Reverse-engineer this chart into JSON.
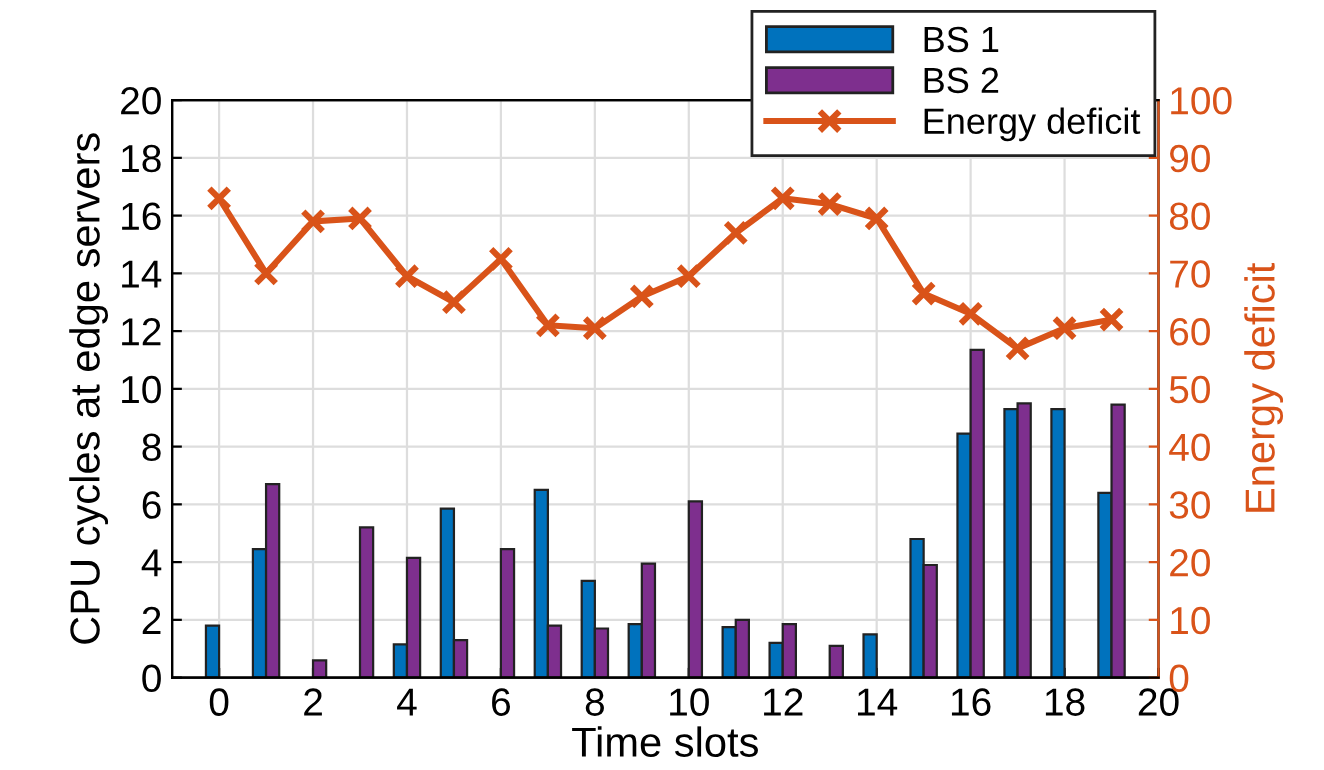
{
  "chart_data": {
    "type": "bar",
    "xlabel": "Time slots",
    "ylabel": "CPU cycles at edge servers",
    "y2label": "Energy deficit",
    "x": [
      0,
      1,
      2,
      3,
      4,
      5,
      6,
      7,
      8,
      9,
      10,
      11,
      12,
      13,
      14,
      15,
      16,
      17,
      18,
      19
    ],
    "series": [
      {
        "name": "BS 1",
        "color": "#0072bd",
        "values": [
          1.8,
          4.45,
          null,
          null,
          1.15,
          5.85,
          null,
          6.5,
          3.35,
          1.85,
          null,
          1.75,
          1.2,
          null,
          1.5,
          4.8,
          8.45,
          9.3,
          9.3,
          6.4
        ]
      },
      {
        "name": "BS 2",
        "color": "#7e2f8e",
        "values": [
          null,
          6.7,
          0.6,
          5.2,
          4.15,
          1.3,
          4.45,
          1.8,
          1.7,
          3.95,
          6.1,
          2.0,
          1.85,
          1.1,
          null,
          3.9,
          11.35,
          9.5,
          null,
          9.45
        ]
      },
      {
        "name": "Energy deficit",
        "type": "line",
        "axis": "y2",
        "color": "#d95319",
        "marker": "cross",
        "line_style": "solid",
        "values": [
          83,
          70,
          79,
          79.5,
          69.5,
          65,
          72.5,
          61,
          60.5,
          66,
          69.5,
          77,
          83,
          82,
          79.5,
          66.5,
          63,
          57,
          60.5,
          62
        ]
      }
    ],
    "xlim": [
      -1,
      20
    ],
    "xticks": [
      0,
      2,
      4,
      6,
      8,
      10,
      12,
      14,
      16,
      18,
      20
    ],
    "ylim": [
      0,
      20
    ],
    "yticks": [
      0,
      2,
      4,
      6,
      8,
      10,
      12,
      14,
      16,
      18,
      20
    ],
    "y2lim": [
      0,
      100
    ],
    "y2ticks": [
      0,
      10,
      20,
      30,
      40,
      50,
      60,
      70,
      80,
      90,
      100
    ],
    "grid": true,
    "legend": "top right"
  }
}
